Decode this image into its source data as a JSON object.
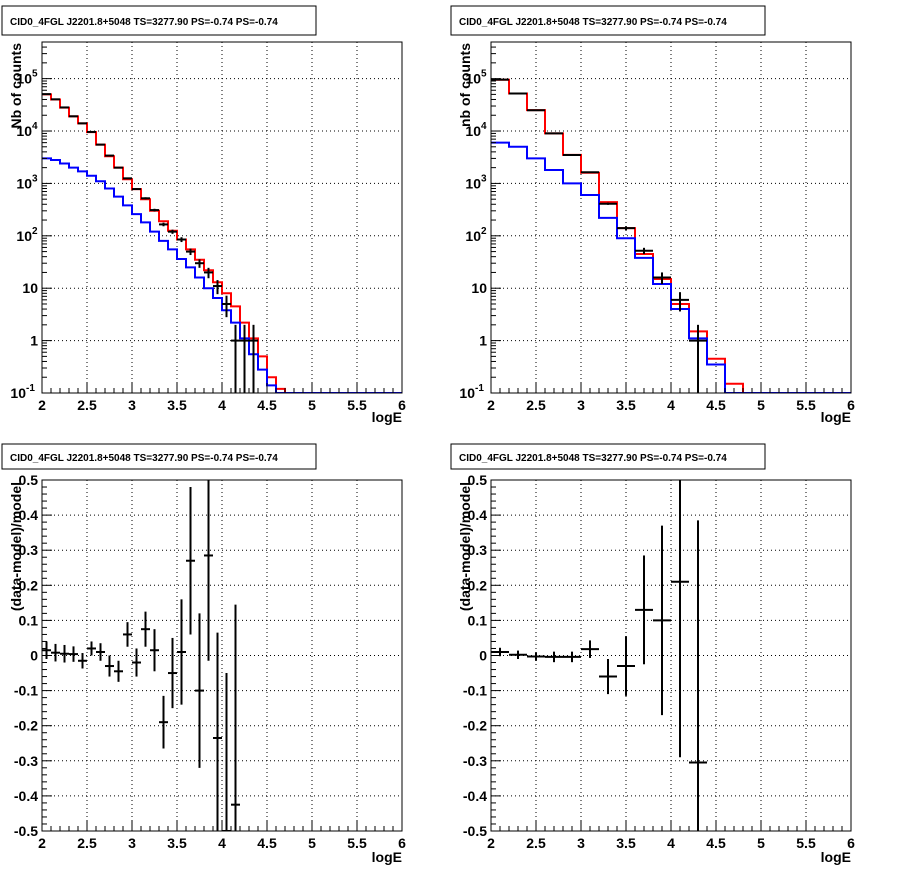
{
  "chart_data": [
    {
      "type": "step-histogram",
      "title": "CID0_4FGL J2201.8+5048 TS=3277.90 PS=-0.74 PS=-0.74",
      "xlabel": "logE",
      "ylabel": "Nb of counts",
      "xlim": [
        2,
        6
      ],
      "ylim": [
        0.1,
        500000
      ],
      "yscale": "log",
      "grid": true,
      "x_ticks": [
        "2",
        "2.5",
        "3",
        "3.5",
        "4",
        "4.5",
        "5",
        "5.5",
        "6"
      ],
      "y_ticks": [
        {
          "value": 0.1,
          "base": "10",
          "exp": "-1"
        },
        {
          "value": 1,
          "text": "1"
        },
        {
          "value": 10,
          "text": "10"
        },
        {
          "value": 100,
          "base": "10",
          "exp": "2"
        },
        {
          "value": 1000,
          "base": "10",
          "exp": "3"
        },
        {
          "value": 10000,
          "base": "10",
          "exp": "4"
        },
        {
          "value": 100000,
          "base": "10",
          "exp": "5"
        }
      ],
      "bin_width": 0.1,
      "series": [
        {
          "color": "#ff0000",
          "style": "step",
          "bin_centers": [
            2.05,
            2.15,
            2.25,
            2.35,
            2.45,
            2.55,
            2.65,
            2.75,
            2.85,
            2.95,
            3.05,
            3.15,
            3.25,
            3.35,
            3.45,
            3.55,
            3.65,
            3.75,
            3.85,
            3.95,
            4.05,
            4.15,
            4.25,
            4.35,
            4.45,
            4.55,
            4.65,
            4.75,
            4.85,
            4.95,
            5.05,
            5.15,
            5.25,
            5.35,
            5.45,
            5.55,
            5.65,
            5.75,
            5.85,
            5.95
          ],
          "values": [
            50000,
            40000,
            28000,
            19000,
            14000,
            9500,
            5500,
            3300,
            2000,
            1200,
            780,
            500,
            300,
            190,
            125,
            85,
            55,
            35,
            22,
            13,
            8,
            4.5,
            2.2,
            1.1,
            0.5,
            0.2,
            0.12,
            0.1,
            0.1,
            0.1,
            0.1,
            0.1,
            0.1,
            0.1,
            0.1,
            0.1,
            0.1,
            0.1,
            0.1,
            0.1
          ]
        },
        {
          "color": "#0000ff",
          "style": "step",
          "bin_centers": [
            2.05,
            2.15,
            2.25,
            2.35,
            2.45,
            2.55,
            2.65,
            2.75,
            2.85,
            2.95,
            3.05,
            3.15,
            3.25,
            3.35,
            3.45,
            3.55,
            3.65,
            3.75,
            3.85,
            3.95,
            4.05,
            4.15,
            4.25,
            4.35,
            4.45,
            4.55,
            4.65,
            4.75,
            4.85,
            4.95,
            5.05,
            5.15,
            5.25,
            5.35,
            5.45,
            5.55,
            5.65,
            5.75,
            5.85,
            5.95
          ],
          "values": [
            3000,
            2800,
            2400,
            2000,
            1700,
            1400,
            1100,
            800,
            560,
            380,
            260,
            180,
            120,
            80,
            55,
            36,
            25,
            16,
            10,
            6.5,
            3.8,
            2.2,
            1.1,
            0.55,
            0.28,
            0.14,
            0.1,
            0.1,
            0.1,
            0.1,
            0.1,
            0.1,
            0.1,
            0.1,
            0.1,
            0.1,
            0.1,
            0.1,
            0.1,
            0.1
          ]
        },
        {
          "color": "#000000",
          "style": "errorbar",
          "x": [
            2.05,
            2.15,
            2.25,
            2.35,
            2.45,
            2.55,
            2.65,
            2.75,
            2.85,
            2.95,
            3.05,
            3.15,
            3.25,
            3.35,
            3.45,
            3.55,
            3.65,
            3.75,
            3.85,
            3.95,
            4.05,
            4.15,
            4.25,
            4.35
          ],
          "y": [
            50600,
            40300,
            28200,
            19100,
            14000,
            9600,
            5500,
            3400,
            2000,
            1250,
            780,
            520,
            310,
            165,
            120,
            85,
            50,
            30,
            20,
            11,
            5,
            1,
            1,
            1
          ],
          "yerr_low": [
            230,
            200,
            170,
            140,
            120,
            100,
            75,
            60,
            45,
            35,
            28,
            23,
            18,
            13,
            11,
            9,
            7,
            5.5,
            4.5,
            3.3,
            2.2,
            0.99,
            0.99,
            0.99
          ],
          "yerr_high": [
            230,
            200,
            170,
            140,
            120,
            100,
            75,
            60,
            45,
            35,
            28,
            23,
            18,
            13,
            11,
            9,
            7,
            5.5,
            4.5,
            3.3,
            2.2,
            1,
            1,
            1
          ]
        }
      ]
    },
    {
      "type": "step-histogram",
      "title": "CID0_4FGL J2201.8+5048 TS=3277.90 PS=-0.74 PS=-0.74",
      "xlabel": "logE",
      "ylabel": "nb of counts",
      "xlim": [
        2,
        6
      ],
      "ylim": [
        0.1,
        500000
      ],
      "yscale": "log",
      "grid": true,
      "x_ticks": [
        "2",
        "2.5",
        "3",
        "3.5",
        "4",
        "4.5",
        "5",
        "5.5",
        "6"
      ],
      "y_ticks": [
        {
          "value": 0.1,
          "base": "10",
          "exp": "-1"
        },
        {
          "value": 1,
          "text": "1"
        },
        {
          "value": 10,
          "text": "10"
        },
        {
          "value": 100,
          "base": "10",
          "exp": "2"
        },
        {
          "value": 1000,
          "base": "10",
          "exp": "3"
        },
        {
          "value": 10000,
          "base": "10",
          "exp": "4"
        },
        {
          "value": 100000,
          "base": "10",
          "exp": "5"
        }
      ],
      "bin_width": 0.2,
      "series": [
        {
          "color": "#ff0000",
          "style": "step",
          "bin_centers": [
            2.1,
            2.3,
            2.5,
            2.7,
            2.9,
            3.1,
            3.3,
            3.5,
            3.7,
            3.9,
            4.1,
            4.3,
            4.5,
            4.7,
            4.9,
            5.1,
            5.3,
            5.5,
            5.7,
            5.9
          ],
          "values": [
            95000,
            52000,
            25000,
            9000,
            3500,
            1600,
            440,
            140,
            45,
            15,
            5,
            1.5,
            0.45,
            0.15,
            0.1,
            0.1,
            0.1,
            0.1,
            0.1,
            0.1
          ]
        },
        {
          "color": "#0000ff",
          "style": "step",
          "bin_centers": [
            2.1,
            2.3,
            2.5,
            2.7,
            2.9,
            3.1,
            3.3,
            3.5,
            3.7,
            3.9,
            4.1,
            4.3,
            4.5,
            4.7,
            4.9,
            5.1,
            5.3,
            5.5,
            5.7,
            5.9
          ],
          "values": [
            6000,
            5000,
            3000,
            1800,
            1000,
            600,
            220,
            90,
            38,
            12,
            4,
            1.1,
            0.35,
            0.1,
            0.1,
            0.1,
            0.1,
            0.1,
            0.1,
            0.1
          ]
        },
        {
          "color": "#000000",
          "style": "errorbar",
          "x": [
            2.1,
            2.3,
            2.5,
            2.7,
            2.9,
            3.1,
            3.3,
            3.5,
            3.7,
            3.9,
            4.1,
            4.3
          ],
          "y": [
            95900,
            52100,
            24900,
            9000,
            3490,
            1630,
            410,
            140,
            52,
            16,
            6,
            1
          ],
          "yerr_low": [
            310,
            230,
            160,
            95,
            59,
            40,
            20,
            12,
            7,
            4,
            2.4,
            0.99
          ],
          "yerr_high": [
            310,
            230,
            160,
            95,
            59,
            40,
            20,
            12,
            7,
            4,
            2.4,
            1
          ]
        }
      ]
    },
    {
      "type": "errorbar",
      "title": "CID0_4FGL J2201.8+5048 TS=3277.90 PS=-0.74 PS=-0.74",
      "xlabel": "logE",
      "ylabel": "(data-model)/model",
      "xlim": [
        2,
        6
      ],
      "ylim": [
        -0.5,
        0.5
      ],
      "grid": true,
      "x_ticks": [
        "2",
        "2.5",
        "3",
        "3.5",
        "4",
        "4.5",
        "5",
        "5.5",
        "6"
      ],
      "y_ticks": [
        "-0.5",
        "-0.4",
        "-0.3",
        "-0.2",
        "-0.1",
        "0",
        "0.1",
        "0.2",
        "0.3",
        "0.4",
        "0.5"
      ],
      "bin_width": 0.1,
      "series": [
        {
          "color": "#000000",
          "x": [
            2.05,
            2.15,
            2.25,
            2.35,
            2.45,
            2.55,
            2.65,
            2.75,
            2.85,
            2.95,
            3.05,
            3.15,
            3.25,
            3.35,
            3.45,
            3.55,
            3.65,
            3.75,
            3.85,
            3.95,
            4.05,
            4.15
          ],
          "y": [
            0.015,
            0.008,
            0.005,
            0.004,
            -0.015,
            0.02,
            0.01,
            -0.03,
            -0.045,
            0.06,
            -0.02,
            0.075,
            0.015,
            -0.19,
            -0.05,
            0.01,
            0.27,
            -0.1,
            0.285,
            -0.235,
            -0.5,
            -0.425
          ],
          "yerr": [
            0.025,
            0.025,
            0.025,
            0.022,
            0.022,
            0.02,
            0.025,
            0.03,
            0.03,
            0.035,
            0.04,
            0.05,
            0.06,
            0.075,
            0.1,
            0.15,
            0.21,
            0.22,
            0.3,
            0.3,
            0.45,
            0.57
          ]
        }
      ]
    },
    {
      "type": "errorbar",
      "title": "CID0_4FGL J2201.8+5048 TS=3277.90 PS=-0.74 PS=-0.74",
      "xlabel": "logE",
      "ylabel": "(data-model)/model",
      "xlim": [
        2,
        6
      ],
      "ylim": [
        -0.5,
        0.5
      ],
      "grid": true,
      "x_ticks": [
        "2",
        "2.5",
        "3",
        "3.5",
        "4",
        "4.5",
        "5",
        "5.5",
        "6"
      ],
      "y_ticks": [
        "-0.5",
        "-0.4",
        "-0.3",
        "-0.2",
        "-0.1",
        "0",
        "0.1",
        "0.2",
        "0.3",
        "0.4",
        "0.5"
      ],
      "bin_width": 0.2,
      "series": [
        {
          "color": "#000000",
          "x": [
            2.1,
            2.3,
            2.5,
            2.7,
            2.9,
            3.1,
            3.3,
            3.5,
            3.7,
            3.9,
            4.1,
            4.3
          ],
          "y": [
            0.01,
            0.002,
            -0.003,
            -0.004,
            -0.004,
            0.018,
            -0.06,
            -0.03,
            0.13,
            0.1,
            0.21,
            -0.305
          ],
          "yerr": [
            0.012,
            0.012,
            0.012,
            0.015,
            0.015,
            0.025,
            0.05,
            0.085,
            0.155,
            0.27,
            0.5,
            0.69
          ]
        }
      ]
    }
  ]
}
